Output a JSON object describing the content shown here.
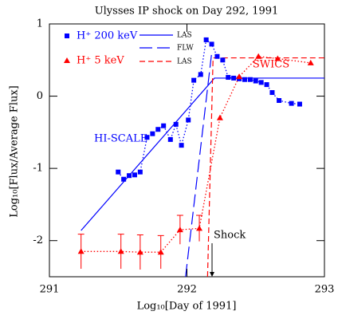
{
  "chart_data": {
    "type": "line-scatter",
    "title": "Ulysses IP shock on Day 292, 1991",
    "xlabel": "Log₁₀[Day of 1991]",
    "ylabel": "Log₁₀[Flux/Average Flux]",
    "xlim": [
      291,
      293
    ],
    "ylim": [
      -2.5,
      1
    ],
    "xticks": [
      291,
      292,
      293
    ],
    "yticks": [
      -2,
      -1,
      0,
      1
    ],
    "annotations": [
      "HI-SCALE",
      "SWICS",
      "Shock"
    ],
    "series": [
      {
        "name": "H⁺ 200 keV",
        "color": "#0000ff",
        "marker": "square",
        "x": [
          291.5,
          291.54,
          291.58,
          291.62,
          291.66,
          291.71,
          291.75,
          291.79,
          291.83,
          291.88,
          291.92,
          291.96,
          292.01,
          292.05,
          292.1,
          292.14,
          292.18,
          292.22,
          292.26,
          292.3,
          292.34,
          292.38,
          292.42,
          292.46,
          292.5,
          292.54,
          292.58,
          292.62,
          292.67,
          292.76,
          292.82
        ],
        "values": [
          -1.05,
          -1.15,
          -1.1,
          -1.09,
          -1.05,
          -0.57,
          -0.52,
          -0.46,
          -0.41,
          -0.6,
          -0.39,
          -0.68,
          -0.33,
          0.22,
          0.3,
          0.78,
          0.72,
          0.55,
          0.5,
          0.26,
          0.25,
          0.24,
          0.23,
          0.23,
          0.21,
          0.19,
          0.16,
          0.05,
          -0.06,
          -0.1,
          -0.11
        ]
      },
      {
        "name": "H⁺ 5 keV",
        "color": "#ff0000",
        "marker": "triangle",
        "x": [
          291.23,
          291.52,
          291.66,
          291.81,
          291.95,
          292.09,
          292.24,
          292.38,
          292.52,
          292.66,
          292.9
        ],
        "values": [
          -2.15,
          -2.15,
          -2.16,
          -2.16,
          -1.85,
          -1.83,
          -0.3,
          0.27,
          0.55,
          0.52,
          0.46
        ],
        "errors": [
          0.24,
          0.24,
          0.24,
          0.23,
          0.2,
          0.18,
          null,
          null,
          null,
          null,
          null
        ]
      }
    ],
    "lines": [
      {
        "name": "LAS",
        "color": "#0000ff",
        "dash": "solid",
        "x": [
          291.23,
          292.2,
          293
        ],
        "values": [
          -1.86,
          0.25,
          0.25
        ]
      },
      {
        "name": "FLW",
        "color": "#0000ff",
        "dash": "long",
        "x": [
          291.99,
          292.18
        ],
        "values": [
          -2.5,
          0.6
        ]
      },
      {
        "name": "LAS",
        "color": "#ff0000",
        "dash": "short",
        "x": [
          292.15,
          292.19,
          293
        ],
        "values": [
          -2.5,
          0.53,
          0.53
        ]
      }
    ]
  }
}
